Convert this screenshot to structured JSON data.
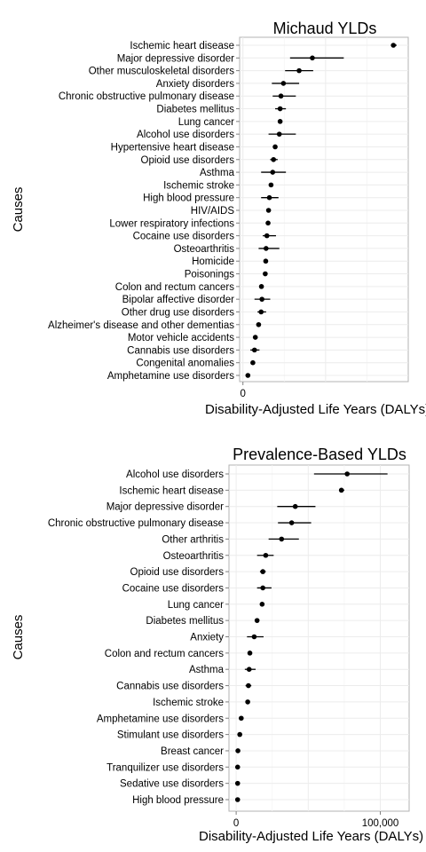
{
  "chart_data": [
    {
      "type": "scatter",
      "title": "Michaud YLDs",
      "xlabel": "Disability-Adjusted Life Years (DALYs)",
      "ylabel": "Causes",
      "xlim": [
        -2000,
        100000
      ],
      "x_ticks": [
        {
          "value": 0,
          "label": "0"
        }
      ],
      "grid": true,
      "categories": [
        "Ischemic heart disease",
        "Major depressive disorder",
        "Other musculoskeletal disorders",
        "Anxiety disorders",
        "Chronic obstructive pulmonary disease",
        "Diabetes mellitus",
        "Lung cancer",
        "Alcohol use disorders",
        "Hypertensive heart disease",
        "Opioid use disorders",
        "Asthma",
        "Ischemic stroke",
        "High blood pressure",
        "HIV/AIDS",
        "Lower respiratory infections",
        "Cocaine use disorders",
        "Osteoarthritis",
        "Homicide",
        "Poisonings",
        "Colon and rectum cancers",
        "Bipolar affective disorder",
        "Other drug use disorders",
        "Alzheimer's disease and other dementias",
        "Motor vehicle accidents",
        "Cannabis use disorders",
        "Congenital anomalies",
        "Amphetamine use disorders"
      ],
      "values": [
        91000,
        42000,
        34000,
        24500,
        23000,
        22500,
        22500,
        22000,
        19500,
        18500,
        18000,
        17000,
        16000,
        15500,
        15200,
        14500,
        14000,
        13800,
        13500,
        11200,
        11500,
        11000,
        9500,
        7500,
        7000,
        6000,
        3000
      ],
      "lower": [
        89500,
        28500,
        25500,
        17500,
        18000,
        19500,
        21500,
        15500,
        18500,
        16500,
        11000,
        16500,
        11000,
        15000,
        14700,
        12000,
        9500,
        13300,
        13000,
        10800,
        7000,
        8800,
        9000,
        7000,
        4500,
        5500,
        2500
      ],
      "upper": [
        93000,
        61000,
        42500,
        34000,
        32000,
        26000,
        23500,
        32000,
        20500,
        21000,
        26000,
        17500,
        21500,
        16000,
        15700,
        20000,
        22000,
        14300,
        14000,
        11600,
        16500,
        14000,
        10000,
        8000,
        10000,
        6500,
        3500
      ]
    },
    {
      "type": "scatter",
      "title": "Prevalence-Based YLDs",
      "xlabel": "Disability-Adjusted Life Years (DALYs)",
      "ylabel": "Causes",
      "xlim": [
        -5000,
        120000
      ],
      "x_ticks": [
        {
          "value": 0,
          "label": "0"
        },
        {
          "value": 100000,
          "label": "100,000"
        }
      ],
      "grid": true,
      "categories": [
        "Alcohol use disorders",
        "Ischemic heart disease",
        "Major depressive disorder",
        "Chronic obstructive pulmonary disease",
        "Other arthritis",
        "Osteoarthritis",
        "Opioid use disorders",
        "Cocaine use disorders",
        "Lung cancer",
        "Diabetes mellitus",
        "Anxiety",
        "Colon and rectum cancers",
        "Asthma",
        "Cannabis use disorders",
        "Ischemic stroke",
        "Amphetamine use disorders",
        "Stimulant use disorders",
        "Breast cancer",
        "Tranquilizer use disorders",
        "Sedative use disorders",
        "High blood pressure"
      ],
      "values": [
        77000,
        73000,
        41000,
        38500,
        31500,
        20500,
        18500,
        18500,
        18000,
        14500,
        12500,
        9500,
        9000,
        8500,
        8000,
        3500,
        2500,
        1200,
        1000,
        1000,
        1000
      ],
      "lower": [
        54000,
        71500,
        28500,
        29000,
        22500,
        14500,
        16500,
        14500,
        17500,
        14000,
        7500,
        9000,
        6000,
        6500,
        7500,
        3000,
        2000,
        700,
        500,
        500,
        500
      ],
      "upper": [
        105000,
        75000,
        55000,
        52000,
        43500,
        26000,
        20500,
        24500,
        18500,
        15000,
        19000,
        10000,
        13500,
        10500,
        8500,
        4000,
        3000,
        1700,
        1500,
        1500,
        1500
      ]
    }
  ]
}
